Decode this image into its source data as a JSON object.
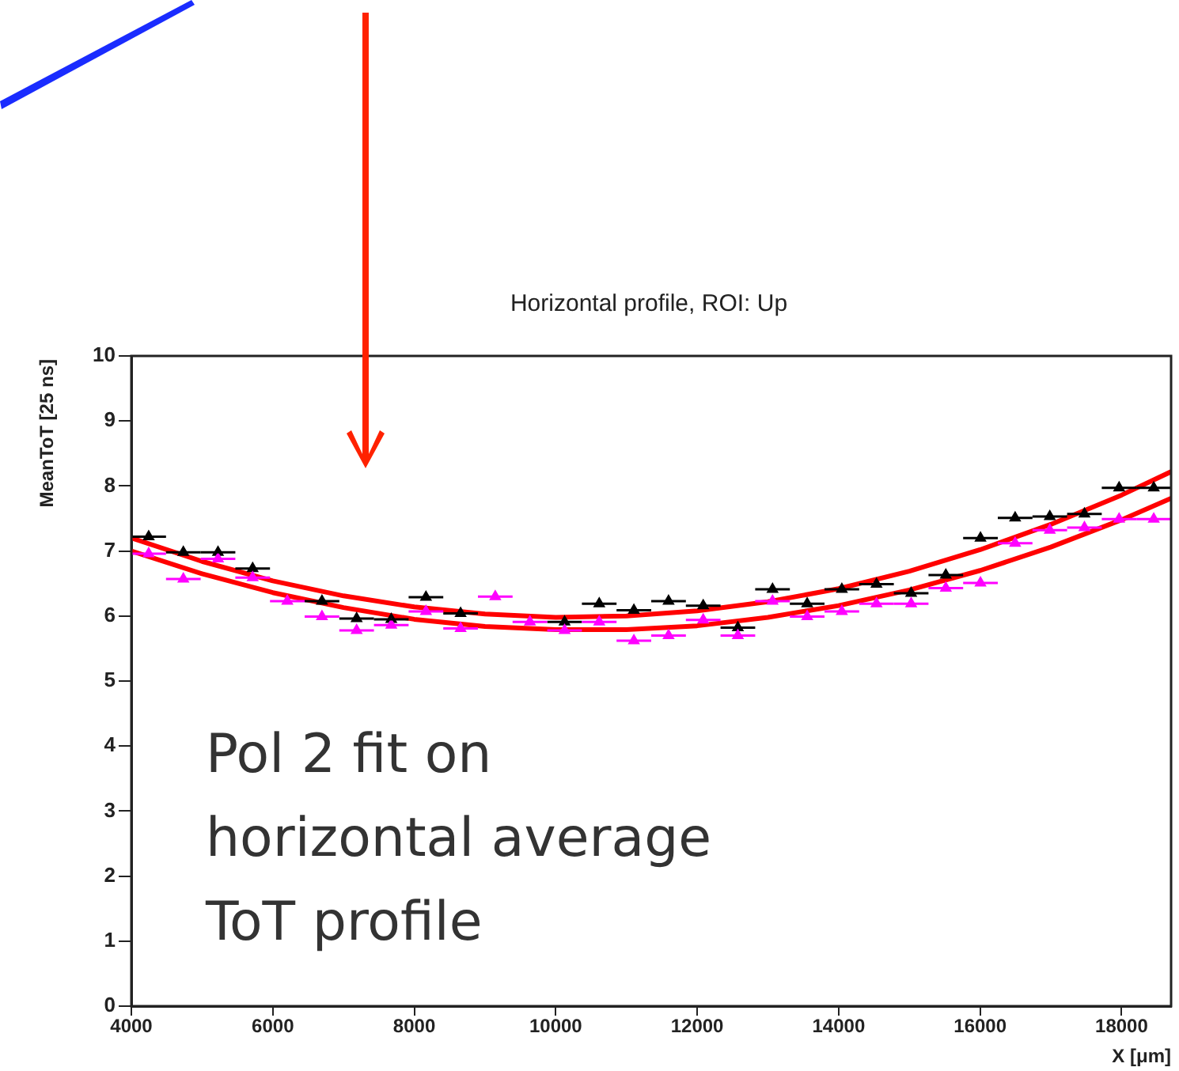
{
  "chart_data": {
    "type": "scatter",
    "title": "Horizontal profile, ROI: Up",
    "xlabel": "X [μm]",
    "ylabel": "MeanToT [25 ns]",
    "annotations": [
      "Pol 2 fit on\nhorizontal average\nToT profile"
    ],
    "xlim": [
      4000,
      18700
    ],
    "ylim": [
      0,
      10
    ],
    "xticks": [
      4000,
      6000,
      8000,
      10000,
      12000,
      14000,
      16000,
      18000
    ],
    "yticks": [
      0,
      1,
      2,
      3,
      4,
      5,
      6,
      7,
      8,
      9,
      10
    ],
    "grid": false,
    "marker": "triangle",
    "series": [
      {
        "color": "#000000",
        "x": [
          4245,
          4735,
          5225,
          5715,
          6205,
          6695,
          7185,
          7675,
          8165,
          8655,
          9145,
          9635,
          10125,
          10615,
          11105,
          11595,
          12085,
          12575,
          13065,
          13555,
          14045,
          14535,
          15025,
          15515,
          16005,
          16495,
          16985,
          17475,
          17965,
          18455
        ],
        "values": [
          7.22,
          6.98,
          6.98,
          6.73,
          null,
          6.23,
          5.96,
          5.95,
          6.29,
          6.04,
          null,
          null,
          5.91,
          6.19,
          6.09,
          6.23,
          6.16,
          5.82,
          6.41,
          6.19,
          6.41,
          6.49,
          6.35,
          6.63,
          7.2,
          7.51,
          7.53,
          7.57,
          7.97,
          7.97
        ],
        "xerrors": [
          245,
          245,
          245,
          245,
          null,
          245,
          245,
          245,
          245,
          245,
          null,
          null,
          245,
          245,
          245,
          245,
          245,
          245,
          245,
          245,
          245,
          245,
          245,
          245,
          245,
          245,
          245,
          245,
          245,
          245
        ]
      },
      {
        "color": "#ff00ff",
        "x": [
          4245,
          4735,
          5225,
          5715,
          6205,
          6695,
          7185,
          7675,
          8165,
          8655,
          9145,
          9635,
          10125,
          10615,
          11105,
          11595,
          12085,
          12575,
          13065,
          13555,
          14045,
          14535,
          15025,
          15515,
          16005,
          16495,
          16985,
          17475,
          17965,
          18455
        ],
        "values": [
          6.96,
          6.57,
          6.88,
          6.59,
          6.23,
          5.99,
          5.78,
          5.86,
          6.07,
          5.81,
          6.3,
          5.91,
          5.78,
          5.91,
          5.62,
          5.7,
          5.94,
          5.7,
          6.23,
          5.99,
          6.07,
          6.19,
          6.19,
          6.43,
          6.51,
          7.12,
          7.32,
          7.36,
          7.49,
          7.49
        ],
        "xerrors": [
          245,
          245,
          245,
          245,
          245,
          245,
          245,
          245,
          245,
          245,
          245,
          245,
          245,
          245,
          245,
          245,
          245,
          245,
          245,
          245,
          245,
          245,
          245,
          245,
          245,
          245,
          245,
          245,
          245,
          245
        ]
      },
      {
        "type": "line",
        "color": "#ff0000",
        "marker": "none",
        "x": [
          4000,
          5000,
          6000,
          7000,
          8000,
          9000,
          10000,
          11000,
          12000,
          13000,
          14000,
          15000,
          16000,
          17000,
          18000,
          18700
        ],
        "values": [
          7.2,
          6.84,
          6.54,
          6.31,
          6.14,
          6.03,
          5.98,
          6.0,
          6.08,
          6.22,
          6.42,
          6.69,
          7.02,
          7.41,
          7.86,
          8.22
        ]
      },
      {
        "type": "line",
        "color": "#ff0000",
        "marker": "none",
        "x": [
          4000,
          5000,
          6000,
          7000,
          8000,
          9000,
          10000,
          11000,
          12000,
          13000,
          14000,
          15000,
          16000,
          17000,
          18000,
          18700
        ],
        "values": [
          7.0,
          6.65,
          6.36,
          6.13,
          5.95,
          5.84,
          5.79,
          5.79,
          5.85,
          5.98,
          6.16,
          6.4,
          6.7,
          7.06,
          7.48,
          7.81
        ]
      }
    ]
  }
}
